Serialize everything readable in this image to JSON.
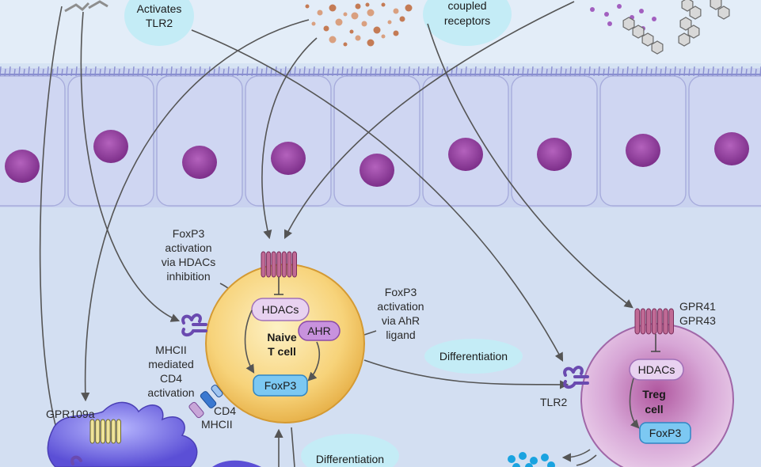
{
  "top_bubbles": {
    "tlr2": [
      "Activates",
      "TLR2"
    ],
    "gpcr": [
      "coupled",
      "receptors"
    ]
  },
  "naive_cell": {
    "title": [
      "Naive",
      "T cell"
    ],
    "hdacs": "HDACs",
    "ahr": "AHR",
    "foxp3": "FoxP3"
  },
  "treg_cell": {
    "title": [
      "Treg",
      "cell"
    ],
    "hdacs": "HDACs",
    "foxp3": "FoxP3"
  },
  "labels": {
    "foxp3_hdac": [
      "FoxP3",
      "activation",
      "via HDACs",
      "inhibition"
    ],
    "foxp3_ahr": [
      "FoxP3",
      "activation",
      "via AhR",
      "ligand"
    ],
    "mhcii_cd4": [
      "MHCII",
      "mediated",
      "CD4",
      "activation"
    ],
    "cd4": "CD4",
    "mhcii": "MHCII",
    "gpr109a": "GPR109a",
    "tlr2": "TLR2",
    "gpr41": "GPR41",
    "gpr43": "GPR43"
  },
  "differentiation": [
    "Differentiation",
    "Differentiation"
  ],
  "colors": {
    "background": "#d6e3f3",
    "epithelium": "#c9d2ef",
    "nucleus": "#9a4aa6",
    "naive_cell": "#f7d37a",
    "treg_cell": "#d7a6d6",
    "pill_purple": "#e8d2f0",
    "pill_blue": "#7cc8f2",
    "bubble": "#c4ecf6",
    "receptor": "#c06a95"
  }
}
